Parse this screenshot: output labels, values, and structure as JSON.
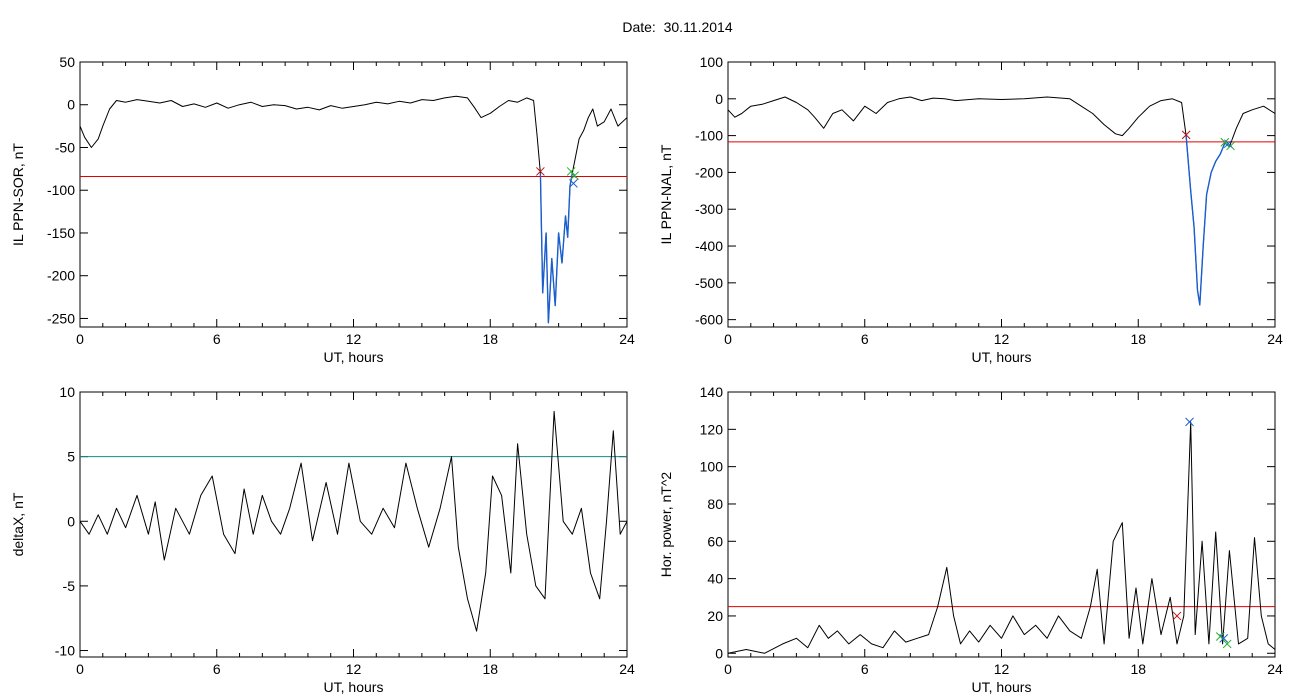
{
  "figure_title": "Date:  30.11.2014",
  "colors": {
    "trace": "#000000",
    "threshold_red": "#e00000",
    "threshold_teal": "#138a8a",
    "substorm_blue": "#1a5fd0",
    "marker_red": "#c01010",
    "marker_green": "#20b020",
    "marker_blue": "#1a5fd0"
  },
  "chart_data": [
    {
      "type": "line",
      "id": "sor",
      "xlabel": "UT, hours",
      "ylabel": "IL PPN-SOR, nT",
      "xlim": [
        0,
        24
      ],
      "ylim": [
        -260,
        50
      ],
      "xticks": [
        0,
        6,
        12,
        18,
        24
      ],
      "yticks": [
        50,
        0,
        -50,
        -100,
        -150,
        -200,
        -250
      ],
      "threshold": -84,
      "threshold_color": "#e00000",
      "series": [
        {
          "color": "#000000",
          "x": [
            0,
            0.2,
            0.5,
            0.8,
            1.0,
            1.3,
            1.6,
            2.0,
            2.5,
            3,
            3.5,
            4,
            4.5,
            5,
            5.5,
            6,
            6.5,
            7,
            7.5,
            8,
            8.5,
            9,
            9.5,
            10,
            10.5,
            11,
            11.5,
            12,
            12.5,
            13,
            13.5,
            14,
            14.5,
            15,
            15.5,
            16,
            16.5,
            17,
            17.3,
            17.6,
            18,
            18.4,
            18.8,
            19.2,
            19.6,
            19.9,
            20.05,
            20.2,
            20.3,
            20.45,
            20.55,
            20.7,
            20.85,
            21.0,
            21.15,
            21.3,
            21.4,
            21.5,
            21.6,
            21.75,
            21.9,
            22.1,
            22.3,
            22.5,
            22.7,
            23.0,
            23.3,
            23.6,
            24
          ],
          "y": [
            -25,
            -38,
            -50,
            -40,
            -25,
            -5,
            5,
            3,
            6,
            4,
            2,
            5,
            -2,
            1,
            -3,
            2,
            -4,
            0,
            3,
            -2,
            0,
            -1,
            -5,
            -3,
            -6,
            -1,
            -4,
            -2,
            0,
            3,
            1,
            4,
            2,
            6,
            5,
            8,
            10,
            8,
            -3,
            -15,
            -10,
            -2,
            5,
            3,
            8,
            5,
            -35,
            -80,
            -220,
            -150,
            -255,
            -180,
            -235,
            -150,
            -185,
            -130,
            -155,
            -95,
            -80,
            -60,
            -40,
            -30,
            -15,
            -5,
            -25,
            -20,
            -5,
            -25,
            -15
          ]
        },
        {
          "name": "",
          "color": "#1a5fd0",
          "x": [
            20.2,
            20.3,
            20.45,
            20.55,
            20.7,
            20.85,
            21.0,
            21.15,
            21.3,
            21.4,
            21.5,
            21.6,
            21.75
          ],
          "y": [
            -80,
            -220,
            -150,
            -255,
            -180,
            -235,
            -150,
            -185,
            -130,
            -155,
            -95,
            -80,
            -85
          ]
        }
      ],
      "markers": [
        {
          "x": 20.2,
          "y": -78,
          "color": "#c01010"
        },
        {
          "x": 21.55,
          "y": -78,
          "color": "#20b020"
        },
        {
          "x": 21.7,
          "y": -83,
          "color": "#20b020"
        },
        {
          "x": 21.65,
          "y": -92,
          "color": "#1a5fd0"
        }
      ]
    },
    {
      "type": "line",
      "id": "nal",
      "xlabel": "UT, hours",
      "ylabel": "IL PPN-NAL, nT",
      "xlim": [
        0,
        24
      ],
      "ylim": [
        -620,
        100
      ],
      "xticks": [
        0,
        6,
        12,
        18,
        24
      ],
      "yticks": [
        100,
        0,
        -100,
        -200,
        -300,
        -400,
        -500,
        -600
      ],
      "threshold": -117,
      "threshold_color": "#e00000",
      "series": [
        {
          "color": "#000000",
          "x": [
            0,
            0.3,
            0.6,
            1.0,
            1.5,
            2.0,
            2.5,
            3.0,
            3.5,
            3.8,
            4.2,
            4.6,
            5.0,
            5.5,
            6.0,
            6.5,
            7,
            7.5,
            8,
            8.5,
            9,
            9.5,
            10,
            11,
            12,
            13,
            14,
            15,
            15.5,
            16,
            16.5,
            17,
            17.3,
            17.6,
            18,
            18.5,
            19,
            19.5,
            19.9,
            20.1,
            20.3,
            20.45,
            20.6,
            20.7,
            20.85,
            21.0,
            21.2,
            21.4,
            21.6,
            21.8,
            22.0,
            22.3,
            22.6,
            23.0,
            23.5,
            24
          ],
          "y": [
            -30,
            -50,
            -40,
            -20,
            -15,
            -5,
            5,
            -10,
            -30,
            -50,
            -80,
            -40,
            -30,
            -60,
            -20,
            -40,
            -10,
            0,
            5,
            -5,
            2,
            0,
            -5,
            0,
            -2,
            0,
            5,
            0,
            -20,
            -40,
            -70,
            -95,
            -100,
            -80,
            -50,
            -20,
            -5,
            0,
            -10,
            -100,
            -250,
            -350,
            -520,
            -560,
            -400,
            -260,
            -200,
            -170,
            -150,
            -120,
            -130,
            -80,
            -40,
            -30,
            -20,
            -40
          ]
        },
        {
          "name": "",
          "color": "#1a5fd0",
          "x": [
            20.1,
            20.3,
            20.45,
            20.6,
            20.7,
            20.85,
            21.0,
            21.2,
            21.4,
            21.6,
            21.8,
            22.0
          ],
          "y": [
            -100,
            -250,
            -350,
            -520,
            -560,
            -400,
            -260,
            -200,
            -170,
            -150,
            -120,
            -130
          ]
        }
      ],
      "markers": [
        {
          "x": 20.1,
          "y": -98,
          "color": "#c01010"
        },
        {
          "x": 21.8,
          "y": -118,
          "color": "#20b020"
        },
        {
          "x": 22.05,
          "y": -128,
          "color": "#20b020"
        },
        {
          "x": 21.95,
          "y": -122,
          "color": "#1a5fd0"
        }
      ]
    },
    {
      "type": "line",
      "id": "deltax",
      "xlabel": "UT, hours",
      "ylabel": "deltaX, nT",
      "xlim": [
        0,
        24
      ],
      "ylim": [
        -10.5,
        10
      ],
      "xticks": [
        0,
        6,
        12,
        18,
        24
      ],
      "yticks": [
        10,
        5,
        0,
        -5,
        -10
      ],
      "threshold": 5,
      "threshold_color": "#138a8a",
      "series": [
        {
          "color": "#000000",
          "x": [
            0,
            0.4,
            0.8,
            1.2,
            1.6,
            2.0,
            2.5,
            3.0,
            3.3,
            3.7,
            4.2,
            4.8,
            5.3,
            5.8,
            6.3,
            6.8,
            7.2,
            7.6,
            8.0,
            8.4,
            8.8,
            9.2,
            9.7,
            10.2,
            10.8,
            11.3,
            11.8,
            12.3,
            12.8,
            13.3,
            13.8,
            14.3,
            14.8,
            15.3,
            15.8,
            16.3,
            16.6,
            17.0,
            17.4,
            17.8,
            18.1,
            18.5,
            18.9,
            19.2,
            19.6,
            20.0,
            20.4,
            20.8,
            21.2,
            21.6,
            22.0,
            22.4,
            22.8,
            23.1,
            23.4,
            23.7,
            24
          ],
          "y": [
            0,
            -1,
            0.5,
            -1,
            1,
            -0.5,
            2,
            -1,
            1.5,
            -3,
            1,
            -1,
            2,
            3.5,
            -1,
            -2.5,
            2.5,
            -1,
            2,
            0,
            -1,
            1,
            4.5,
            -1.5,
            3,
            -1,
            4.5,
            0,
            -1,
            1,
            -0.5,
            4.5,
            1,
            -2,
            1,
            5,
            -2,
            -6,
            -8.5,
            -4,
            3.5,
            2,
            -4,
            6,
            -1,
            -5,
            -6,
            8.5,
            0,
            -1,
            1,
            -4,
            -6,
            0,
            7,
            -1,
            0
          ]
        }
      ],
      "markers": []
    },
    {
      "type": "line",
      "id": "power",
      "xlabel": "UT, hours",
      "ylabel": "Hor. power, nT^2",
      "xlim": [
        0,
        24
      ],
      "ylim": [
        -2,
        140
      ],
      "xticks": [
        0,
        6,
        12,
        18,
        24
      ],
      "yticks": [
        140,
        120,
        100,
        80,
        60,
        40,
        20,
        0
      ],
      "threshold": 25,
      "threshold_color": "#e00000",
      "series": [
        {
          "color": "#000000",
          "x": [
            0,
            0.8,
            1.6,
            2.4,
            3.0,
            3.5,
            4.0,
            4.4,
            4.8,
            5.3,
            5.8,
            6.3,
            6.8,
            7.3,
            7.8,
            8.3,
            8.8,
            9.2,
            9.6,
            9.9,
            10.2,
            10.6,
            11.0,
            11.5,
            12.0,
            12.5,
            13.0,
            13.5,
            14.0,
            14.5,
            15.0,
            15.5,
            15.9,
            16.2,
            16.5,
            16.9,
            17.3,
            17.6,
            17.9,
            18.2,
            18.6,
            19.0,
            19.4,
            19.7,
            20.0,
            20.3,
            20.5,
            20.8,
            21.1,
            21.4,
            21.7,
            22.0,
            22.4,
            22.8,
            23.1,
            23.4,
            23.7,
            24
          ],
          "y": [
            0,
            2,
            0,
            5,
            8,
            3,
            15,
            8,
            12,
            5,
            10,
            5,
            3,
            12,
            6,
            8,
            10,
            25,
            46,
            20,
            5,
            12,
            6,
            15,
            8,
            20,
            10,
            15,
            8,
            20,
            12,
            8,
            25,
            45,
            5,
            60,
            70,
            8,
            35,
            5,
            40,
            10,
            30,
            5,
            20,
            124,
            10,
            60,
            5,
            65,
            5,
            55,
            5,
            8,
            62,
            20,
            5,
            2
          ]
        }
      ],
      "markers": [
        {
          "x": 20.25,
          "y": 124,
          "color": "#1a5fd0"
        },
        {
          "x": 19.7,
          "y": 20,
          "color": "#c01010"
        },
        {
          "x": 21.6,
          "y": 9,
          "color": "#20b020"
        },
        {
          "x": 21.9,
          "y": 5,
          "color": "#20b020"
        },
        {
          "x": 21.75,
          "y": 8,
          "color": "#1a5fd0"
        }
      ]
    }
  ]
}
